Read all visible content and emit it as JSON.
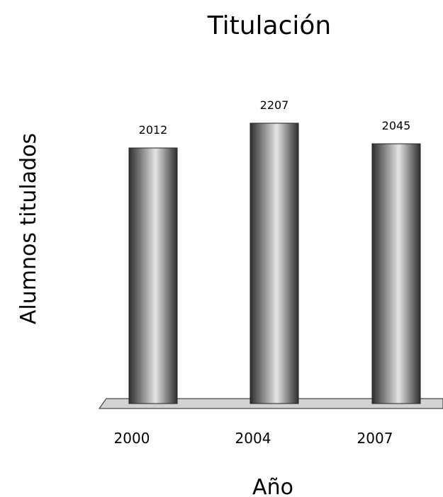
{
  "chart_data": {
    "type": "bar",
    "title": "Titulación",
    "xlabel": "Año",
    "ylabel": "Alumnos titulados",
    "categories": [
      "2000",
      "2004",
      "2007"
    ],
    "values": [
      2012,
      2207,
      2045
    ],
    "ylim": [
      0,
      2207
    ],
    "grid": false,
    "legend": "none",
    "bar_style": "3d-cylinder",
    "colors": {
      "bar_dark": "#2e2e2e",
      "bar_light": "#e4e4e4",
      "floor": "#d2d2d2",
      "outline": "#222222"
    }
  }
}
